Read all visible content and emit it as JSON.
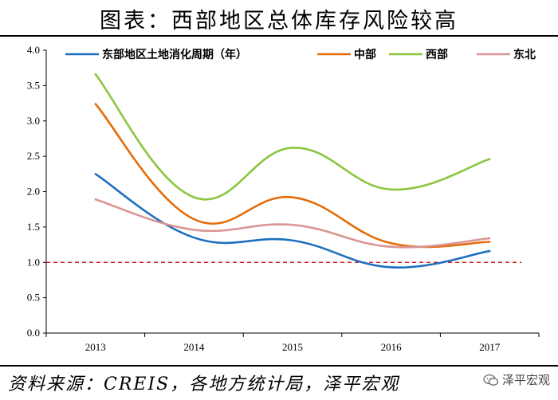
{
  "title": "图表：西部地区总体库存风险较高",
  "source": "资料来源：CREIS，各地方统计局，泽平宏观",
  "watermark": "泽平宏观",
  "colors": {
    "east": "#1f6fbf",
    "central": "#e46c0a",
    "west": "#8cc63f",
    "northeast": "#d99694",
    "reference": "#cc0000"
  },
  "chart_data": {
    "type": "line",
    "categories": [
      "2013",
      "2014",
      "2015",
      "2016",
      "2017"
    ],
    "ylim": [
      0,
      4
    ],
    "yticks": [
      "0.0",
      "0.5",
      "1.0",
      "1.5",
      "2.0",
      "2.5",
      "3.0",
      "3.5",
      "4.0"
    ],
    "reference_line": 1.0,
    "legend_position": "top",
    "series": [
      {
        "name": "东部地区土地消化周期（年）",
        "key": "east",
        "values": [
          2.25,
          1.35,
          1.31,
          0.93,
          1.16
        ]
      },
      {
        "name": "中部",
        "key": "central",
        "values": [
          3.24,
          1.61,
          1.92,
          1.27,
          1.29
        ]
      },
      {
        "name": "西部",
        "key": "west",
        "values": [
          3.66,
          1.92,
          2.62,
          2.03,
          2.46
        ]
      },
      {
        "name": "东北",
        "key": "northeast",
        "values": [
          1.89,
          1.46,
          1.53,
          1.22,
          1.34
        ]
      }
    ]
  }
}
